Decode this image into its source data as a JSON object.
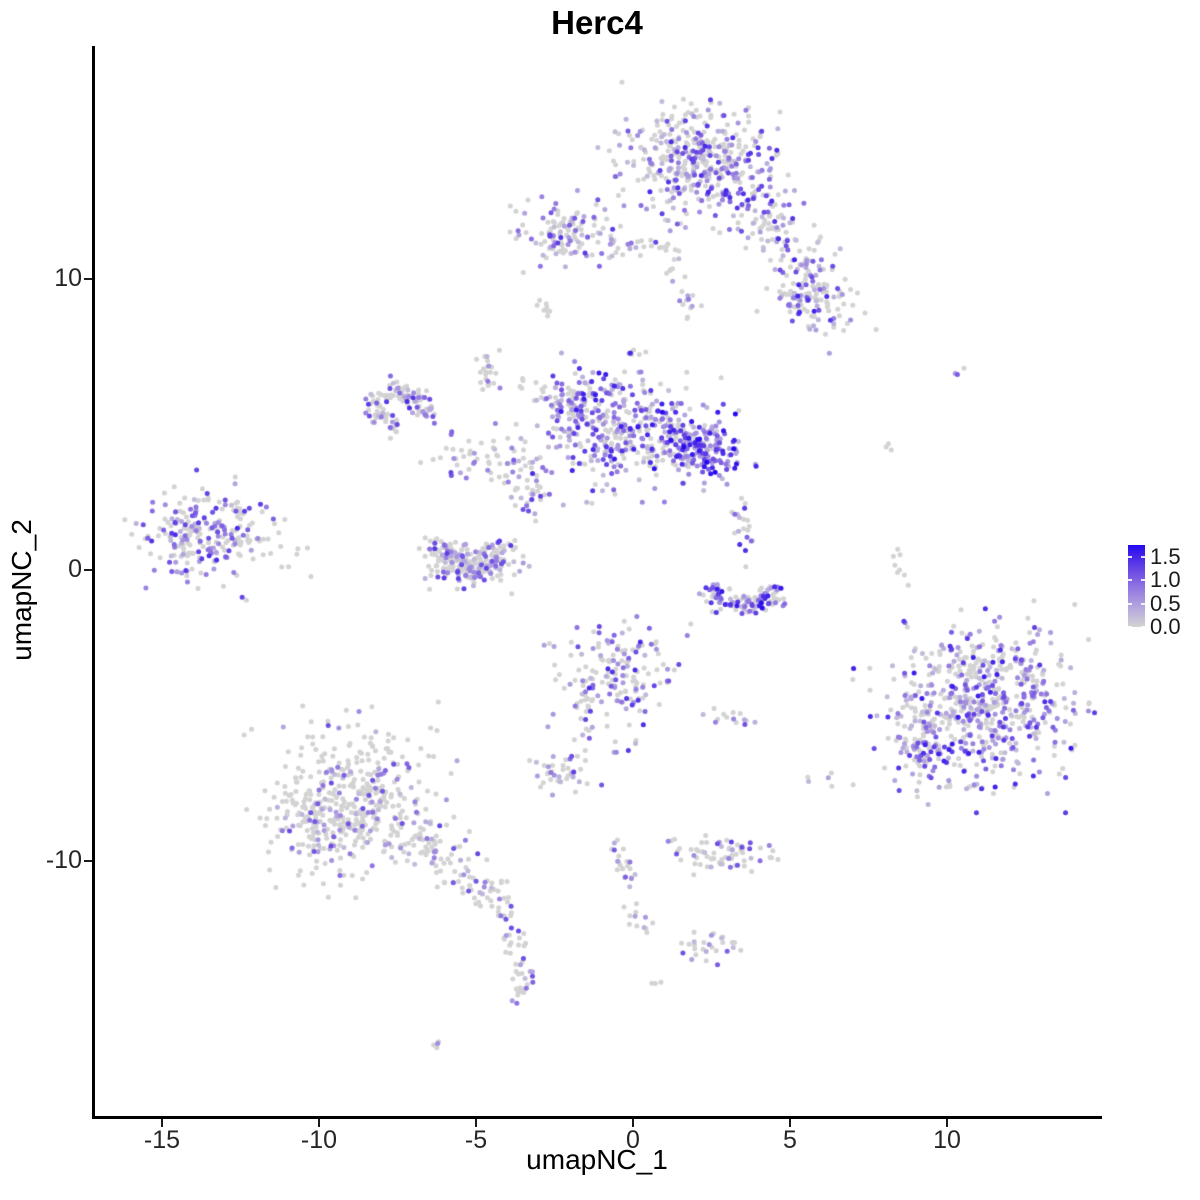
{
  "chart_data": {
    "type": "scatter",
    "title": "Herc4",
    "xlabel": "umapNC_1",
    "ylabel": "umapNC_2",
    "x_ticks": [
      -15,
      -10,
      -5,
      0,
      5,
      10
    ],
    "y_ticks": [
      -10,
      0,
      10
    ],
    "x_range": [
      -17.2,
      14.9
    ],
    "y_range": [
      -18.6,
      18.0
    ],
    "grid": false,
    "legend_position": "right",
    "point_count_approx": 4000,
    "color_scale": {
      "meaning": "Herc4 expression level",
      "min": 0.0,
      "max": 1.75,
      "label_values": [
        1.5,
        1.0,
        0.5,
        0.0
      ],
      "labels": [
        "1.5",
        "1.0",
        "0.5",
        "0.0"
      ],
      "zero_color": "#d3d3d3",
      "stops": [
        "#d3d3d3",
        "#b3a4de",
        "#8e72e1",
        "#5f3de6",
        "#2309f0"
      ]
    },
    "clusters": [
      {
        "name": "top-main",
        "shape": "gauss",
        "cx": 2.1,
        "cy": 14.1,
        "sx": 1.15,
        "sy": 0.95,
        "n": 420,
        "frac": 0.45,
        "vhi": 1.3
      },
      {
        "name": "top-arm",
        "shape": "line",
        "x1": 3.9,
        "y1": 12.7,
        "x2": 6.6,
        "y2": 8.6,
        "w": 0.55,
        "n": 170,
        "frac": 0.4,
        "vhi": 1.3
      },
      {
        "name": "top-arm-knot",
        "shape": "gauss",
        "cx": 5.35,
        "cy": 9.3,
        "sx": 0.5,
        "sy": 0.45,
        "n": 55,
        "frac": 0.45,
        "vhi": 1.3
      },
      {
        "name": "top-left-appendage",
        "shape": "gauss",
        "cx": -2.2,
        "cy": 11.5,
        "sx": 0.75,
        "sy": 0.55,
        "n": 115,
        "frac": 0.42,
        "vhi": 1.2
      },
      {
        "name": "appendage-bridge",
        "shape": "line",
        "x1": -1.3,
        "y1": 11.2,
        "x2": 0.9,
        "y2": 11.05,
        "w": 0.22,
        "n": 26,
        "frac": 0.45,
        "vhi": 1.2
      },
      {
        "name": "top-neck",
        "shape": "line",
        "x1": 1.0,
        "y1": 11.2,
        "x2": 1.75,
        "y2": 9.2,
        "w": 0.25,
        "n": 18,
        "frac": 0.35,
        "vhi": 1.1
      },
      {
        "name": "tiny-west",
        "shape": "gauss",
        "cx": -2.85,
        "cy": 8.85,
        "sx": 0.12,
        "sy": 0.28,
        "n": 8,
        "frac": 0.3,
        "vhi": 0.9
      },
      {
        "name": "tiny-east",
        "shape": "gauss",
        "cx": 1.75,
        "cy": 8.95,
        "sx": 0.15,
        "sy": 0.2,
        "n": 8,
        "frac": 0.3,
        "vhi": 0.9
      },
      {
        "name": "strand",
        "shape": "line",
        "x1": -4.75,
        "y1": 7.6,
        "x2": -4.55,
        "y2": 6.15,
        "w": 0.17,
        "n": 22,
        "frac": 0.25,
        "vhi": 1.0
      },
      {
        "name": "hook-ring",
        "shape": "arc",
        "cx": -7.35,
        "cy": 5.5,
        "r": 0.75,
        "a1": -30,
        "a2": 260,
        "w": 0.28,
        "n": 120,
        "frac": 0.45,
        "vhi": 1.3
      },
      {
        "name": "link-a",
        "shape": "line",
        "x1": -6.2,
        "y1": 4.0,
        "x2": -3.0,
        "y2": 3.5,
        "w": 0.42,
        "n": 55,
        "frac": 0.25,
        "vhi": 1.1
      },
      {
        "name": "link-b",
        "shape": "line",
        "x1": -4.3,
        "y1": 3.15,
        "x2": -2.6,
        "y2": 2.05,
        "w": 0.3,
        "n": 30,
        "frac": 0.3,
        "vhi": 1.1
      },
      {
        "name": "central-main",
        "shape": "gauss",
        "cx": -0.55,
        "cy": 4.8,
        "sx": 1.4,
        "sy": 0.95,
        "n": 360,
        "frac": 0.6,
        "vhi": 1.4
      },
      {
        "name": "central-west",
        "shape": "gauss",
        "cx": -1.85,
        "cy": 5.65,
        "sx": 0.5,
        "sy": 0.55,
        "n": 80,
        "frac": 0.65,
        "vhi": 1.4
      },
      {
        "name": "central-knot",
        "shape": "gauss",
        "cx": 2.1,
        "cy": 4.15,
        "sx": 0.65,
        "sy": 0.55,
        "n": 170,
        "frac": 0.85,
        "vhi": 1.6
      },
      {
        "name": "chain-south",
        "shape": "line",
        "x1": 3.3,
        "y1": 2.2,
        "x2": 3.75,
        "y2": 0.35,
        "w": 0.18,
        "n": 20,
        "frac": 0.6,
        "vhi": 1.4
      },
      {
        "name": "crescent",
        "shape": "arc",
        "cx": 3.55,
        "cy": -0.35,
        "r": 1.15,
        "a1": 185,
        "a2": 345,
        "w": 0.25,
        "n": 115,
        "frac": 0.65,
        "vhi": 1.5
      },
      {
        "name": "bowl",
        "shape": "arc",
        "cx": -5.2,
        "cy": 0.75,
        "r": 0.95,
        "a1": 160,
        "a2": 380,
        "w": 0.35,
        "n": 185,
        "frac": 0.4,
        "vhi": 1.2
      },
      {
        "name": "bowl-fill",
        "shape": "gauss",
        "cx": -5.2,
        "cy": 0.3,
        "sx": 0.75,
        "sy": 0.4,
        "n": 55,
        "frac": 0.35,
        "vhi": 1.1
      },
      {
        "name": "left-main",
        "shape": "gauss",
        "cx": -13.8,
        "cy": 1.2,
        "sx": 0.9,
        "sy": 0.8,
        "n": 210,
        "frac": 0.5,
        "vhi": 1.3
      },
      {
        "name": "left-halo",
        "shape": "gauss",
        "cx": -11.6,
        "cy": 1.0,
        "sx": 1.0,
        "sy": 0.8,
        "n": 30,
        "frac": 0.15,
        "vhi": 0.9
      },
      {
        "name": "mid-lower",
        "shape": "gauss",
        "cx": -0.45,
        "cy": -3.6,
        "sx": 0.85,
        "sy": 0.95,
        "n": 165,
        "frac": 0.45,
        "vhi": 1.3
      },
      {
        "name": "mid-lower-east",
        "shape": "gauss",
        "cx": 3.1,
        "cy": -5.1,
        "sx": 0.4,
        "sy": 0.15,
        "n": 14,
        "frac": 0.4,
        "vhi": 1.1
      },
      {
        "name": "small-sw",
        "shape": "gauss",
        "cx": -2.4,
        "cy": -6.95,
        "sx": 0.5,
        "sy": 0.35,
        "n": 42,
        "frac": 0.45,
        "vhi": 1.1
      },
      {
        "name": "small-sw-chain",
        "shape": "line",
        "x1": -1.65,
        "y1": -4.6,
        "x2": -1.4,
        "y2": -5.9,
        "w": 0.15,
        "n": 15,
        "frac": 0.4,
        "vhi": 1.1
      },
      {
        "name": "bottomleft-main",
        "shape": "gauss",
        "cx": -8.85,
        "cy": -7.9,
        "sx": 1.3,
        "sy": 1.2,
        "n": 430,
        "frac": 0.22,
        "vhi": 1.0
      },
      {
        "name": "bottomleft-west",
        "shape": "gauss",
        "cx": -10.3,
        "cy": -8.6,
        "sx": 0.6,
        "sy": 0.7,
        "n": 60,
        "frac": 0.2,
        "vhi": 0.9
      },
      {
        "name": "bottomleft-trail",
        "shape": "line",
        "x1": -6.9,
        "y1": -9.3,
        "x2": -4.2,
        "y2": -11.3,
        "w": 0.42,
        "n": 95,
        "frac": 0.3,
        "vhi": 1.1
      },
      {
        "name": "bottomleft-chain",
        "shape": "line",
        "x1": -4.1,
        "y1": -11.5,
        "x2": -3.4,
        "y2": -14.4,
        "w": 0.18,
        "n": 38,
        "frac": 0.35,
        "vhi": 1.0
      },
      {
        "name": "chain-endblob",
        "shape": "gauss",
        "cx": -3.55,
        "cy": -14.5,
        "sx": 0.2,
        "sy": 0.25,
        "n": 12,
        "frac": 0.55,
        "vhi": 1.0
      },
      {
        "name": "far-sw-pair",
        "shape": "gauss",
        "cx": -6.2,
        "cy": -16.3,
        "sx": 0.15,
        "sy": 0.1,
        "n": 4,
        "frac": 0.5,
        "vhi": 0.9
      },
      {
        "name": "squiggle",
        "shape": "line",
        "x1": -0.45,
        "y1": -9.4,
        "x2": 0.25,
        "y2": -12.3,
        "w": 0.18,
        "n": 34,
        "frac": 0.3,
        "vhi": 1.0
      },
      {
        "name": "bottom-bar",
        "shape": "gauss",
        "cx": 2.85,
        "cy": -9.8,
        "sx": 0.85,
        "sy": 0.3,
        "n": 72,
        "frac": 0.28,
        "vhi": 1.1
      },
      {
        "name": "bottom-small",
        "shape": "gauss",
        "cx": 2.55,
        "cy": -12.9,
        "sx": 0.5,
        "sy": 0.3,
        "n": 28,
        "frac": 0.3,
        "vhi": 1.0
      },
      {
        "name": "bottom-dot",
        "shape": "gauss",
        "cx": 0.7,
        "cy": -14.2,
        "sx": 0.1,
        "sy": 0.08,
        "n": 3,
        "frac": 0.7,
        "vhi": 1.0
      },
      {
        "name": "right-main",
        "shape": "gauss",
        "cx": 11.2,
        "cy": -4.7,
        "sx": 1.5,
        "sy": 1.3,
        "n": 560,
        "frac": 0.55,
        "vhi": 1.4
      },
      {
        "name": "right-west",
        "shape": "gauss",
        "cx": 9.1,
        "cy": -6.0,
        "sx": 0.45,
        "sy": 0.65,
        "n": 70,
        "frac": 0.5,
        "vhi": 1.3
      },
      {
        "name": "right-north",
        "shape": "gauss",
        "cx": 11.5,
        "cy": -3.1,
        "sx": 1.0,
        "sy": 0.4,
        "n": 40,
        "frac": 0.35,
        "vhi": 1.2
      },
      {
        "name": "stray-ne",
        "shape": "gauss",
        "cx": 10.2,
        "cy": 6.85,
        "sx": 0.25,
        "sy": 0.1,
        "n": 3,
        "frac": 0.8,
        "vhi": 1.4
      },
      {
        "name": "stray-gray",
        "shape": "gauss",
        "cx": 8.2,
        "cy": 4.6,
        "sx": 0.15,
        "sy": 0.3,
        "n": 3,
        "frac": 0.0,
        "vhi": 0.0
      },
      {
        "name": "stray-chain",
        "shape": "line",
        "x1": 8.4,
        "y1": 1.1,
        "x2": 8.6,
        "y2": -0.6,
        "w": 0.1,
        "n": 8,
        "frac": 0.15,
        "vhi": 1.0
      },
      {
        "name": "stray-dot",
        "shape": "gauss",
        "cx": 8.6,
        "cy": -1.75,
        "sx": 0.08,
        "sy": 0.08,
        "n": 2,
        "frac": 0.9,
        "vhi": 1.3
      },
      {
        "name": "stray-s1",
        "shape": "gauss",
        "cx": 5.5,
        "cy": -7.35,
        "sx": 0.12,
        "sy": 0.1,
        "n": 2,
        "frac": 0.8,
        "vhi": 1.1
      },
      {
        "name": "stray-s2",
        "shape": "gauss",
        "cx": 6.5,
        "cy": -7.2,
        "sx": 0.3,
        "sy": 0.15,
        "n": 4,
        "frac": 0.2,
        "vhi": 0.9
      },
      {
        "name": "sparse-c1",
        "shape": "gauss",
        "cx": 0.0,
        "cy": 7.3,
        "sx": 0.25,
        "sy": 0.25,
        "n": 5,
        "frac": 0.3,
        "vhi": 1.0
      },
      {
        "name": "sparse-c2",
        "shape": "gauss",
        "cx": -3.0,
        "cy": 6.5,
        "sx": 0.3,
        "sy": 0.3,
        "n": 6,
        "frac": 0.3,
        "vhi": 1.0
      }
    ]
  }
}
